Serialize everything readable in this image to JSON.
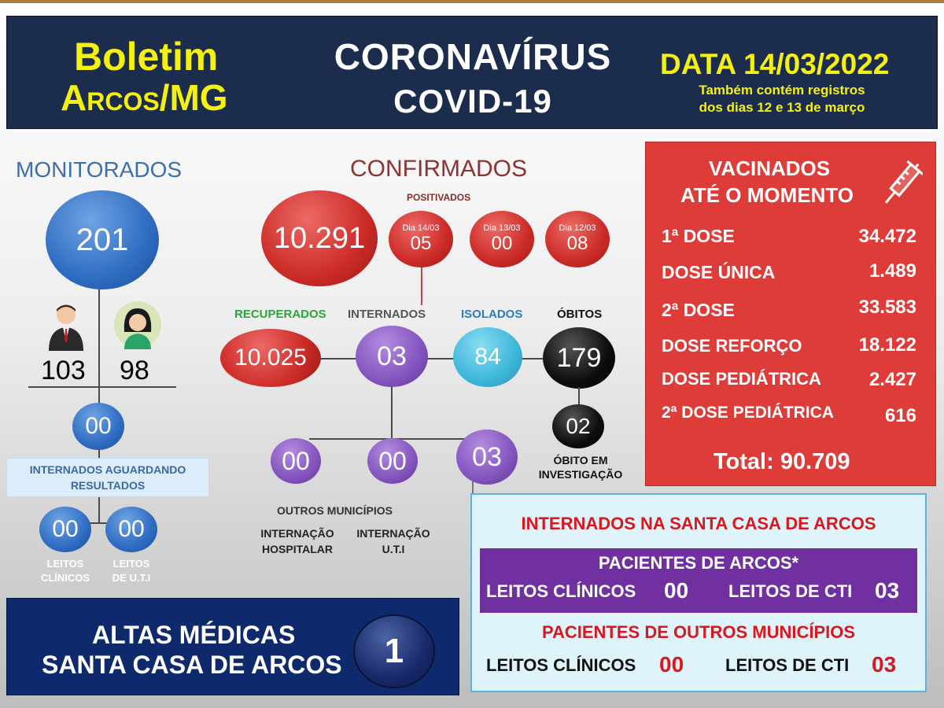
{
  "header": {
    "brand_line1": "Boletim",
    "brand_line2": "Arcos/MG",
    "title_line1": "CORONAVÍRUS",
    "title_line2": "COVID-19",
    "date": "DATA 14/03/2022",
    "note_line1": "Também contém registros",
    "note_line2": "dos dias 12 e 13 de março"
  },
  "monitorados": {
    "title": "MONITORADOS",
    "total": "201",
    "men": "103",
    "women": "98",
    "aguardando": "00",
    "aguardando_label_line1": "INTERNADOS AGUARDANDO",
    "aguardando_label_line2": "RESULTADOS",
    "leitos_clinicos": "00",
    "leitos_uti": "00",
    "leitos_clinicos_label_line1": "LEITOS",
    "leitos_clinicos_label_line2": "CLÍNICOS",
    "leitos_uti_label_line1": "LEITOS",
    "leitos_uti_label_line2": "DE U.T.I"
  },
  "confirmados": {
    "title": "CONFIRMADOS",
    "positivados_label": "POSITIVADOS",
    "total": "10.291",
    "days": [
      {
        "label": "Dia 14/03",
        "value": "05"
      },
      {
        "label": "Dia 13/03",
        "value": "00"
      },
      {
        "label": "Dia 12/03",
        "value": "08"
      }
    ],
    "recuperados_label": "RECUPERADOS",
    "recuperados": "10.025",
    "internados_label": "INTERNADOS",
    "internados": "03",
    "isolados_label": "ISOLADOS",
    "isolados": "84",
    "obitos_label": "ÓBITOS",
    "obitos": "179",
    "obito_investigacao": "02",
    "obito_investigacao_label_line1": "ÓBITO EM",
    "obito_investigacao_label_line2": "INVESTIGAÇÃO",
    "sub_internados": [
      "00",
      "00",
      "03"
    ],
    "outros_municipios_label": "OUTROS MUNICÍPIOS",
    "internacao_hospitalar_line1": "INTERNAÇÃO",
    "internacao_hospitalar_line2": "HOSPITALAR",
    "internacao_uti_line1": "INTERNAÇÃO",
    "internacao_uti_line2": "U.T.I"
  },
  "altas": {
    "line1": "ALTAS MÉDICAS",
    "line2": "SANTA CASA DE ARCOS",
    "value": "1"
  },
  "vacinados": {
    "title_line1": "VACINADOS",
    "title_line2": "ATÉ O MOMENTO",
    "rows": [
      {
        "label": "1ª DOSE",
        "value": "34.472"
      },
      {
        "label": "DOSE ÚNICA",
        "value": "1.489"
      },
      {
        "label": "2ª DOSE",
        "value": "33.583"
      },
      {
        "label": "DOSE REFORÇO",
        "value": "18.122"
      },
      {
        "label": "DOSE PEDIÁTRICA",
        "value": "2.427"
      },
      {
        "label": "2ª DOSE PEDIÁTRICA",
        "value": "616"
      }
    ],
    "total": "Total: 90.709"
  },
  "santa_casa": {
    "title": "INTERNADOS NA SANTA CASA DE ARCOS",
    "arcos_label": "PACIENTES DE ARCOS*",
    "arcos_clinicos_label": "LEITOS CLÍNICOS",
    "arcos_clinicos_value": "00",
    "arcos_cti_label": "LEITOS DE CTI",
    "arcos_cti_value": "03",
    "outros_label": "PACIENTES DE OUTROS MUNICÍPIOS",
    "outros_clinicos_label": "LEITOS CLÍNICOS",
    "outros_clinicos_value": "00",
    "outros_cti_label": "LEITOS DE CTI",
    "outros_cti_value": "03"
  },
  "colors": {
    "header_bg": "#1c2c4c",
    "yellow": "#f5f10e",
    "vaccine_panel": "#dd3c38",
    "hospital_panel": "#dff3fb",
    "purple_bar": "#7030a0",
    "altas_panel": "#0f2a6c"
  },
  "icons": [
    "male-person-icon",
    "female-person-icon",
    "syringe-icon"
  ]
}
